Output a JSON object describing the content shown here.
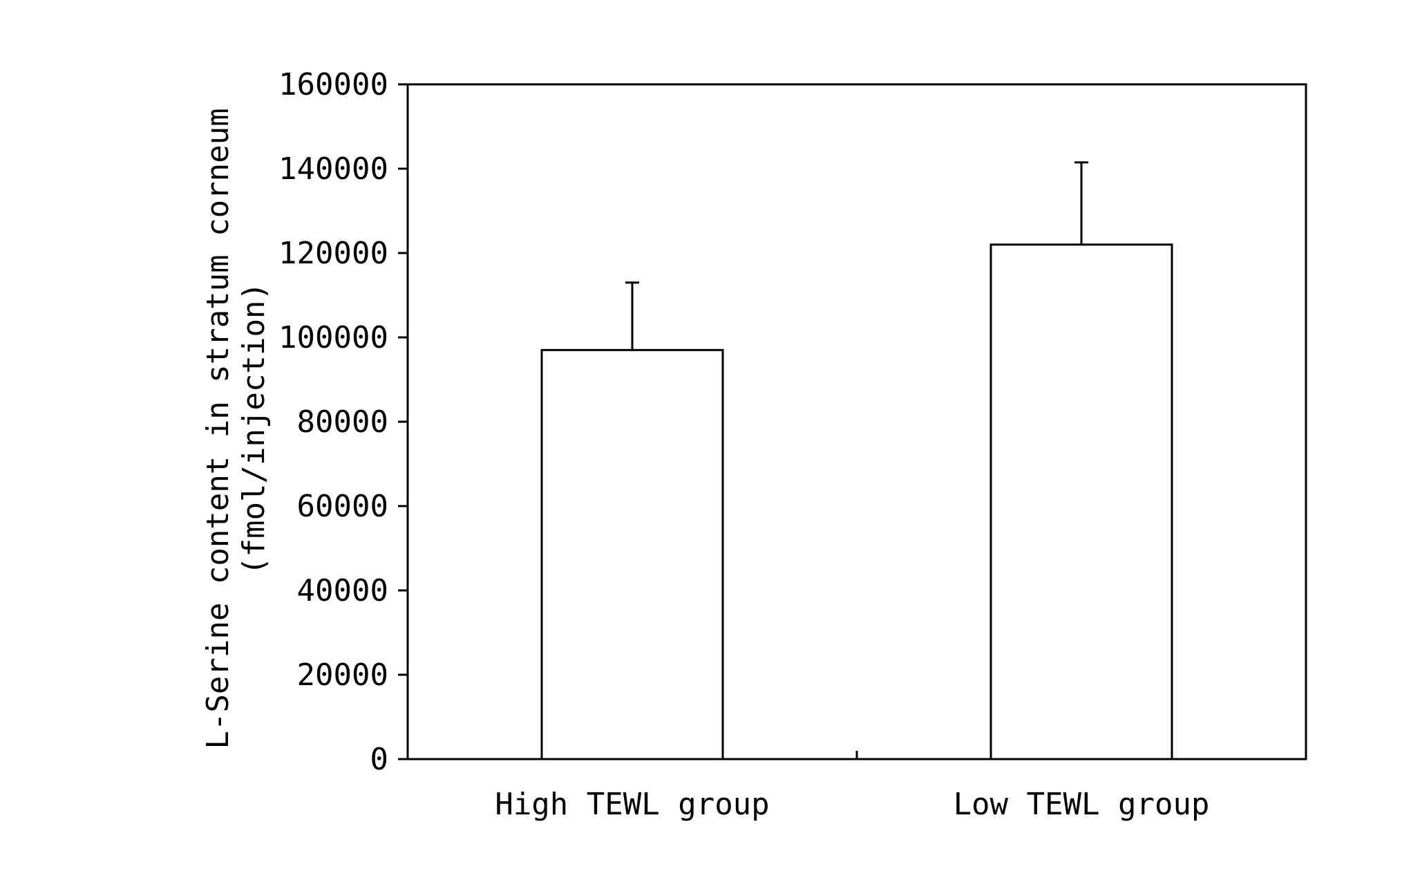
{
  "chart_data": {
    "type": "bar",
    "title": "",
    "xlabel": "",
    "ylabel": "L-Serine content in stratum corneum",
    "ylabel_unit": "(fmol/injection)",
    "categories": [
      "High TEWL group",
      "Low TEWL group"
    ],
    "values": [
      97000,
      122000
    ],
    "error_plus": [
      16000,
      19500
    ],
    "ylim": [
      0,
      160000
    ],
    "yticks": [
      0,
      20000,
      40000,
      60000,
      80000,
      100000,
      120000,
      140000,
      160000
    ],
    "ytick_labels": [
      "0",
      "20000",
      "40000",
      "60000",
      "80000",
      "100000",
      "120000",
      "140000",
      "160000"
    ],
    "grid": false,
    "legend": "none",
    "bar_fill": "#ffffff",
    "line_color": "#000000"
  }
}
